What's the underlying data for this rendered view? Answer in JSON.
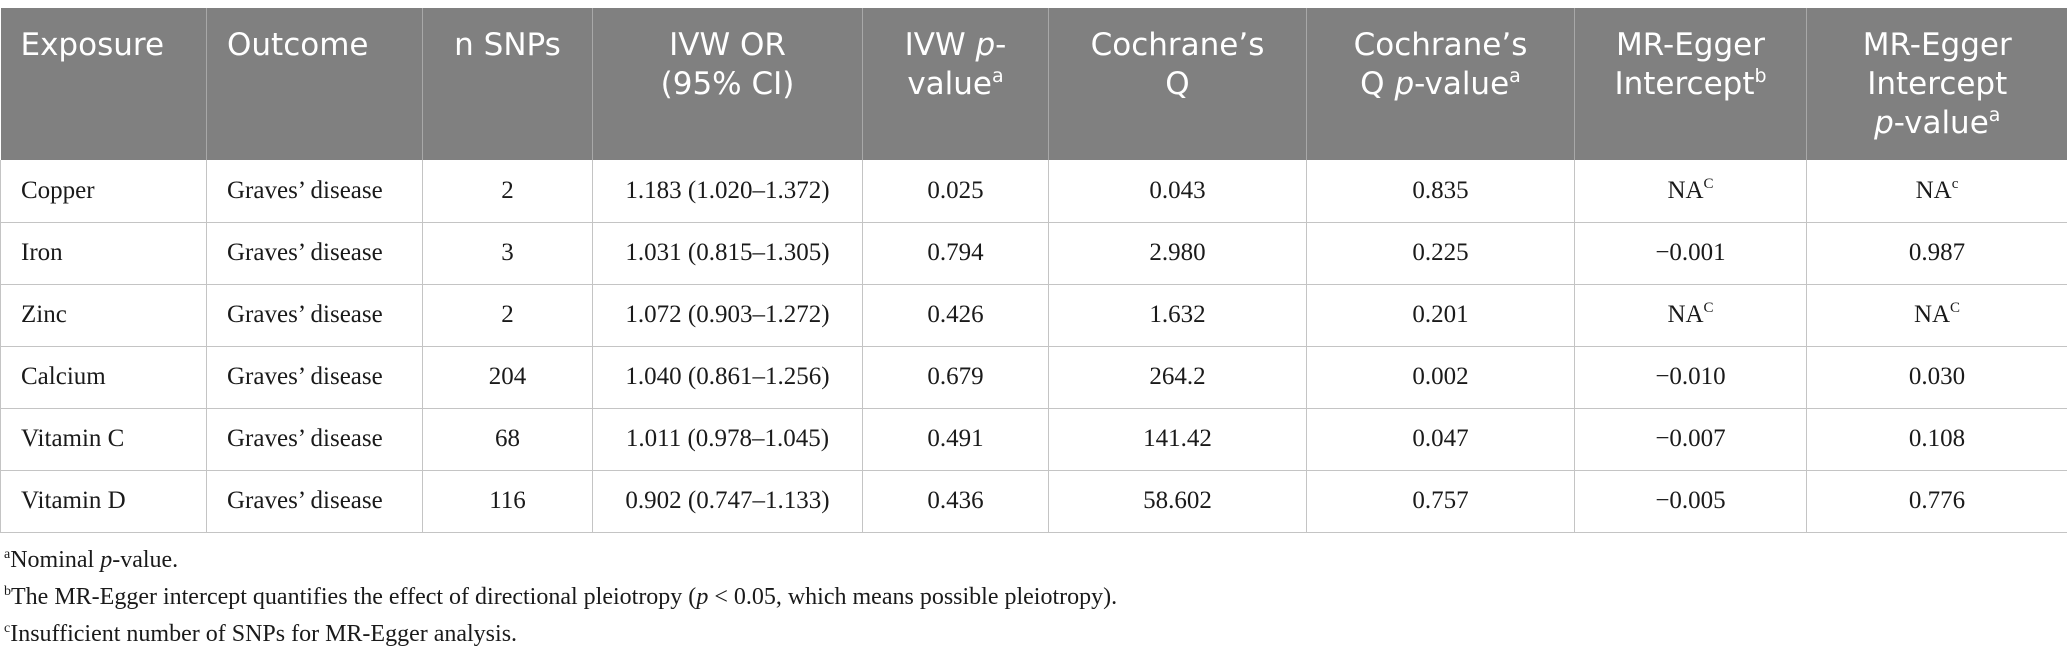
{
  "table": {
    "headers": {
      "exposure": "Exposure",
      "outcome": "Outcome",
      "nsnps": "n SNPs",
      "ivw_or_1": "IVW OR",
      "ivw_or_2": "(95% CI)",
      "ivw_p_pre": "IVW ",
      "ivw_p_it": "p",
      "ivw_p_post": "-",
      "ivw_p_line2": "value",
      "ivw_p_sup": "a",
      "cq_1": "Cochrane’s",
      "cq_2": "Q",
      "cqp_1": "Cochrane’s",
      "cqp_pre": "Q ",
      "cqp_it": "p",
      "cqp_post": "-value",
      "cqp_sup": "a",
      "egger_int_1": "MR-Egger",
      "egger_int_2": "Intercept",
      "egger_int_sup": "b",
      "egger_p_1": "MR-Egger",
      "egger_p_2": "Intercept",
      "egger_p_it": "p",
      "egger_p_post": "-value",
      "egger_p_sup": "a"
    },
    "rows": [
      {
        "exposure": "Copper",
        "outcome": "Graves’ disease",
        "nsnps": "2",
        "ivw_or": "1.183 (1.020–1.372)",
        "ivw_p": "0.025",
        "cq": "0.043",
        "cqp": "0.835",
        "egger_int": "NA",
        "egger_int_sup": "C",
        "egger_p": "NA",
        "egger_p_sup": "c"
      },
      {
        "exposure": "Iron",
        "outcome": "Graves’ disease",
        "nsnps": "3",
        "ivw_or": "1.031 (0.815–1.305)",
        "ivw_p": "0.794",
        "cq": "2.980",
        "cqp": "0.225",
        "egger_int": "−0.001",
        "egger_int_sup": "",
        "egger_p": "0.987",
        "egger_p_sup": ""
      },
      {
        "exposure": "Zinc",
        "outcome": "Graves’ disease",
        "nsnps": "2",
        "ivw_or": "1.072 (0.903–1.272)",
        "ivw_p": "0.426",
        "cq": "1.632",
        "cqp": "0.201",
        "egger_int": "NA",
        "egger_int_sup": "C",
        "egger_p": "NA",
        "egger_p_sup": "C"
      },
      {
        "exposure": "Calcium",
        "outcome": "Graves’ disease",
        "nsnps": "204",
        "ivw_or": "1.040 (0.861–1.256)",
        "ivw_p": "0.679",
        "cq": "264.2",
        "cqp": "0.002",
        "egger_int": "−0.010",
        "egger_int_sup": "",
        "egger_p": "0.030",
        "egger_p_sup": ""
      },
      {
        "exposure": "Vitamin C",
        "outcome": "Graves’ disease",
        "nsnps": "68",
        "ivw_or": "1.011 (0.978–1.045)",
        "ivw_p": "0.491",
        "cq": "141.42",
        "cqp": "0.047",
        "egger_int": "−0.007",
        "egger_int_sup": "",
        "egger_p": "0.108",
        "egger_p_sup": ""
      },
      {
        "exposure": "Vitamin D",
        "outcome": "Graves’ disease",
        "nsnps": "116",
        "ivw_or": "0.902 (0.747–1.133)",
        "ivw_p": "0.436",
        "cq": "58.602",
        "cqp": "0.757",
        "egger_int": "−0.005",
        "egger_int_sup": "",
        "egger_p": "0.776",
        "egger_p_sup": ""
      }
    ]
  },
  "footnotes": {
    "a_mark": "a",
    "a_it": "Nominal ",
    "a_it2": "p",
    "a_text": "-value.",
    "b_mark": "b",
    "b_text_1": "The MR-Egger intercept quantifies the effect of directional pleiotropy (",
    "b_it": "p",
    "b_text_2": " < 0.05, which means possible pleiotropy).",
    "c_mark": "c",
    "c_text": "Insufficient number of SNPs for MR-Egger analysis."
  }
}
